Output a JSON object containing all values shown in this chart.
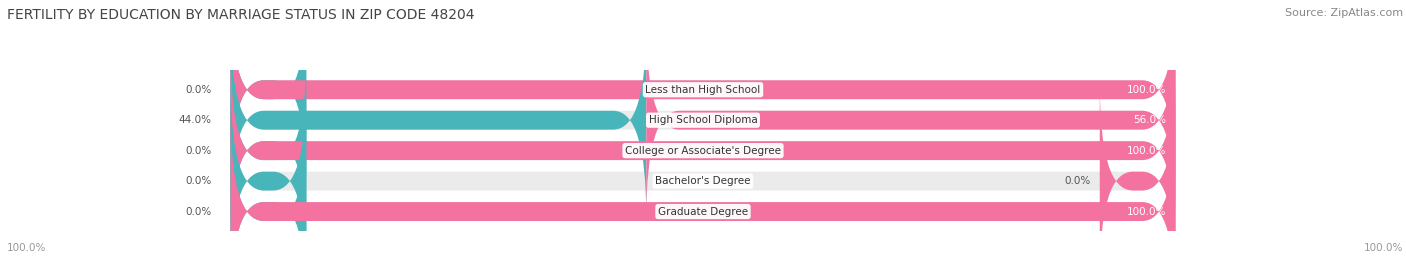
{
  "title": "FERTILITY BY EDUCATION BY MARRIAGE STATUS IN ZIP CODE 48204",
  "source": "Source: ZipAtlas.com",
  "categories": [
    "Less than High School",
    "High School Diploma",
    "College or Associate's Degree",
    "Bachelor's Degree",
    "Graduate Degree"
  ],
  "married": [
    0.0,
    44.0,
    0.0,
    0.0,
    0.0
  ],
  "unmarried": [
    100.0,
    56.0,
    100.0,
    0.0,
    100.0
  ],
  "color_married": "#48b5ba",
  "color_unmarried": "#f472a0",
  "color_married_light": "#8ed0d4",
  "color_unmarried_light": "#f9a8c9",
  "bg_color": "#ffffff",
  "bar_bg_color": "#ebebeb",
  "bar_gap_color": "#f5f5f5",
  "axis_label_left": "100.0%",
  "axis_label_right": "100.0%",
  "title_fontsize": 10,
  "source_fontsize": 8,
  "label_fontsize": 8,
  "cat_fontsize": 7.5,
  "pct_fontsize": 7.5,
  "legend_fontsize": 8.5
}
